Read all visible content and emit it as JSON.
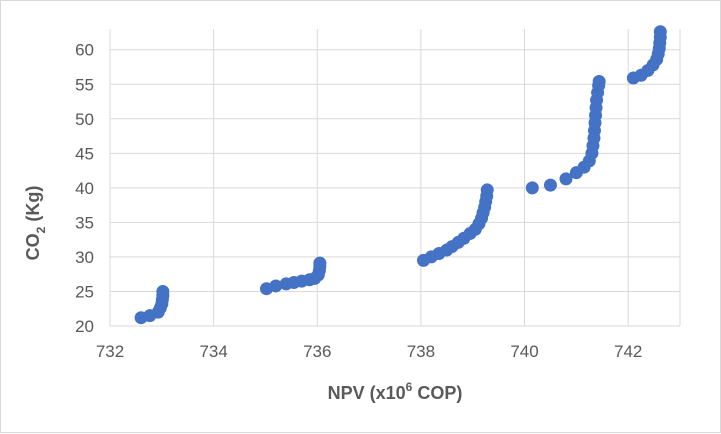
{
  "chart_data": {
    "type": "scatter",
    "xlabel": {
      "main": "NPV (x10",
      "sup": "6",
      "tail": " COP)"
    },
    "ylabel": {
      "main": "CO",
      "sub": "2",
      "tail": " (Kg)"
    },
    "xlim": [
      732,
      743
    ],
    "ylim": [
      20,
      63
    ],
    "xticks": [
      732,
      734,
      736,
      738,
      740,
      742
    ],
    "yticks": [
      20,
      25,
      30,
      35,
      40,
      45,
      50,
      55,
      60
    ],
    "xtick_labels": [
      "732",
      "734",
      "736",
      "738",
      "740",
      "742"
    ],
    "ytick_labels": [
      "20",
      "25",
      "30",
      "35",
      "40",
      "45",
      "50",
      "55",
      "60"
    ],
    "grid": true,
    "colors": {
      "marker": "#4472c4",
      "grid": "#d9d9d9",
      "text": "#595959"
    },
    "series": [
      {
        "points": [
          [
            732.6,
            21.2
          ],
          [
            732.77,
            21.5
          ],
          [
            732.93,
            22.0
          ],
          [
            732.97,
            22.6
          ],
          [
            733.0,
            23.2
          ],
          [
            733.01,
            23.8
          ],
          [
            733.02,
            24.4
          ],
          [
            733.02,
            25.0
          ],
          [
            735.02,
            25.4
          ],
          [
            735.2,
            25.8
          ],
          [
            735.4,
            26.1
          ],
          [
            735.55,
            26.3
          ],
          [
            735.7,
            26.5
          ],
          [
            735.85,
            26.7
          ],
          [
            735.95,
            26.9
          ],
          [
            736.02,
            27.4
          ],
          [
            736.04,
            28.0
          ],
          [
            736.05,
            28.6
          ],
          [
            736.05,
            29.1
          ],
          [
            738.05,
            29.5
          ],
          [
            738.2,
            30.0
          ],
          [
            738.35,
            30.5
          ],
          [
            738.5,
            31.0
          ],
          [
            738.6,
            31.5
          ],
          [
            738.72,
            32.1
          ],
          [
            738.83,
            32.7
          ],
          [
            738.95,
            33.4
          ],
          [
            739.05,
            34.0
          ],
          [
            739.12,
            34.8
          ],
          [
            739.17,
            35.6
          ],
          [
            739.2,
            36.4
          ],
          [
            739.23,
            37.2
          ],
          [
            739.25,
            38.0
          ],
          [
            739.27,
            38.8
          ],
          [
            739.28,
            39.7
          ],
          [
            740.15,
            40.0
          ],
          [
            740.5,
            40.4
          ],
          [
            740.8,
            41.3
          ],
          [
            741.0,
            42.2
          ],
          [
            741.15,
            43.0
          ],
          [
            741.25,
            43.9
          ],
          [
            741.3,
            45.0
          ],
          [
            741.32,
            46.1
          ],
          [
            741.34,
            47.2
          ],
          [
            741.35,
            48.3
          ],
          [
            741.36,
            49.4
          ],
          [
            741.37,
            50.5
          ],
          [
            741.38,
            51.6
          ],
          [
            741.39,
            52.7
          ],
          [
            741.41,
            53.8
          ],
          [
            741.43,
            54.8
          ],
          [
            741.44,
            55.4
          ],
          [
            742.1,
            55.9
          ],
          [
            742.25,
            56.3
          ],
          [
            742.38,
            57.0
          ],
          [
            742.48,
            57.8
          ],
          [
            742.55,
            58.6
          ],
          [
            742.58,
            59.4
          ],
          [
            742.6,
            60.2
          ],
          [
            742.61,
            61.0
          ],
          [
            742.62,
            61.8
          ],
          [
            742.62,
            62.6
          ]
        ]
      }
    ]
  }
}
